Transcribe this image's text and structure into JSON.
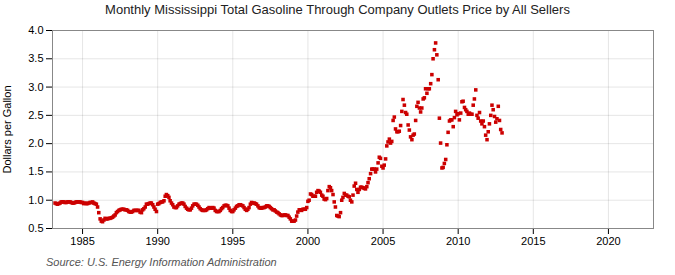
{
  "chart_data": {
    "type": "scatter",
    "title": "Monthly Mississippi Total Gasoline Through Company Outlets Price by All Sellers",
    "y_label": "Dollars per Gallon",
    "annotations": [
      "Source: U.S. Energy Information Administration"
    ],
    "color": "#cc0000",
    "marker": "square",
    "grid": true,
    "xlim": [
      1983,
      2023
    ],
    "ylim": [
      0.5,
      4.0
    ],
    "xticks": [
      1985,
      1990,
      1995,
      2000,
      2005,
      2010,
      2015,
      2020
    ],
    "yticks": [
      0.5,
      {
        "value": 1.0,
        "label": "1.0"
      },
      1.5,
      {
        "value": 2.0,
        "label": "2.0"
      },
      2.5,
      {
        "value": 3.0,
        "label": "3.0"
      },
      3.5,
      {
        "value": 4.0,
        "label": "4.0"
      }
    ],
    "x": [
      1983.17,
      1983.25,
      1983.33,
      1983.42,
      1983.5,
      1983.58,
      1983.67,
      1983.75,
      1983.83,
      1983.92,
      1984.0,
      1984.08,
      1984.17,
      1984.25,
      1984.33,
      1984.42,
      1984.5,
      1984.58,
      1984.67,
      1984.75,
      1984.83,
      1984.92,
      1985.0,
      1985.08,
      1985.17,
      1985.25,
      1985.33,
      1985.42,
      1985.5,
      1985.58,
      1985.67,
      1985.75,
      1985.83,
      1985.92,
      1986.0,
      1986.08,
      1986.17,
      1986.25,
      1986.33,
      1986.42,
      1986.5,
      1986.58,
      1986.67,
      1986.75,
      1986.83,
      1986.92,
      1987.0,
      1987.08,
      1987.17,
      1987.25,
      1987.33,
      1987.42,
      1987.5,
      1987.58,
      1987.67,
      1987.75,
      1987.83,
      1987.92,
      1988.0,
      1988.08,
      1988.17,
      1988.25,
      1988.33,
      1988.42,
      1988.5,
      1988.58,
      1988.67,
      1988.75,
      1988.83,
      1988.92,
      1989.0,
      1989.08,
      1989.17,
      1989.25,
      1989.33,
      1989.42,
      1989.5,
      1989.58,
      1989.67,
      1989.75,
      1989.83,
      1989.92,
      1990.0,
      1990.08,
      1990.17,
      1990.25,
      1990.33,
      1990.42,
      1990.5,
      1990.58,
      1990.67,
      1990.75,
      1990.83,
      1990.92,
      1991.0,
      1991.08,
      1991.17,
      1991.25,
      1991.33,
      1991.42,
      1991.5,
      1991.58,
      1991.67,
      1991.75,
      1991.83,
      1991.92,
      1992.0,
      1992.08,
      1992.17,
      1992.25,
      1992.33,
      1992.42,
      1992.5,
      1992.58,
      1992.67,
      1992.75,
      1992.83,
      1992.92,
      1993.0,
      1993.08,
      1993.17,
      1993.25,
      1993.33,
      1993.42,
      1993.5,
      1993.58,
      1993.67,
      1993.75,
      1993.83,
      1993.92,
      1994.0,
      1994.08,
      1994.17,
      1994.25,
      1994.33,
      1994.42,
      1994.5,
      1994.58,
      1994.67,
      1994.75,
      1994.83,
      1994.92,
      1995.0,
      1995.08,
      1995.17,
      1995.25,
      1995.33,
      1995.42,
      1995.5,
      1995.58,
      1995.67,
      1995.75,
      1995.83,
      1995.92,
      1996.0,
      1996.08,
      1996.17,
      1996.25,
      1996.33,
      1996.42,
      1996.5,
      1996.58,
      1996.67,
      1996.75,
      1996.83,
      1996.92,
      1997.0,
      1997.08,
      1997.17,
      1997.25,
      1997.33,
      1997.42,
      1997.5,
      1997.58,
      1997.67,
      1997.75,
      1997.83,
      1997.92,
      1998.0,
      1998.08,
      1998.17,
      1998.25,
      1998.33,
      1998.42,
      1998.5,
      1998.58,
      1998.67,
      1998.75,
      1998.83,
      1998.92,
      1999.0,
      1999.08,
      1999.17,
      1999.25,
      1999.33,
      1999.42,
      1999.5,
      1999.58,
      1999.67,
      1999.75,
      1999.83,
      1999.92,
      2000.0,
      2000.08,
      2000.17,
      2000.25,
      2000.33,
      2000.42,
      2000.5,
      2000.58,
      2000.67,
      2000.75,
      2000.83,
      2000.92,
      2001.0,
      2001.08,
      2001.17,
      2001.25,
      2001.33,
      2001.42,
      2001.5,
      2001.58,
      2001.67,
      2001.75,
      2001.83,
      2001.92,
      2002.0,
      2002.08,
      2002.17,
      2002.25,
      2002.33,
      2002.42,
      2002.5,
      2002.58,
      2002.67,
      2002.75,
      2002.83,
      2002.92,
      2003.0,
      2003.08,
      2003.17,
      2003.25,
      2003.33,
      2003.42,
      2003.5,
      2003.58,
      2003.67,
      2003.75,
      2003.83,
      2003.92,
      2004.0,
      2004.08,
      2004.17,
      2004.25,
      2004.33,
      2004.42,
      2004.5,
      2004.58,
      2004.67,
      2004.75,
      2004.83,
      2004.92,
      2005.0,
      2005.08,
      2005.17,
      2005.25,
      2005.33,
      2005.42,
      2005.5,
      2005.58,
      2005.67,
      2005.75,
      2005.83,
      2005.92,
      2006.0,
      2006.08,
      2006.17,
      2006.25,
      2006.33,
      2006.42,
      2006.5,
      2006.58,
      2006.67,
      2006.75,
      2006.83,
      2006.92,
      2007.0,
      2007.08,
      2007.17,
      2007.25,
      2007.33,
      2007.42,
      2007.5,
      2007.58,
      2007.67,
      2007.75,
      2007.83,
      2007.92,
      2008.0,
      2008.08,
      2008.17,
      2008.25,
      2008.33,
      2008.42,
      2008.5,
      2008.58,
      2008.67,
      2008.75,
      2008.83,
      2008.92,
      2009.0,
      2009.08,
      2009.17,
      2009.25,
      2009.33,
      2009.42,
      2009.5,
      2009.58,
      2009.67,
      2009.75,
      2009.83,
      2009.92,
      2010.0,
      2010.08,
      2010.17,
      2010.25,
      2010.33,
      2010.42,
      2010.5,
      2010.58,
      2010.67,
      2010.75,
      2010.83,
      2010.92,
      2011.0,
      2011.08,
      2011.17,
      2011.25,
      2011.33,
      2011.42,
      2011.5,
      2011.58,
      2011.67,
      2011.75,
      2011.83,
      2011.92,
      2012.0,
      2012.08,
      2012.17,
      2012.25,
      2012.33,
      2012.42,
      2012.5,
      2012.58,
      2012.67,
      2012.75,
      2012.83,
      2012.92
    ],
    "values": [
      0.95,
      0.94,
      0.93,
      0.94,
      0.95,
      0.97,
      0.97,
      0.97,
      0.96,
      0.96,
      0.97,
      0.97,
      0.97,
      0.96,
      0.95,
      0.95,
      0.96,
      0.97,
      0.97,
      0.97,
      0.97,
      0.96,
      0.96,
      0.94,
      0.95,
      0.94,
      0.94,
      0.95,
      0.96,
      0.96,
      0.97,
      0.95,
      0.94,
      0.93,
      0.88,
      0.78,
      0.67,
      0.63,
      0.62,
      0.65,
      0.68,
      0.67,
      0.67,
      0.68,
      0.68,
      0.69,
      0.7,
      0.72,
      0.74,
      0.78,
      0.8,
      0.82,
      0.83,
      0.84,
      0.84,
      0.84,
      0.83,
      0.83,
      0.82,
      0.8,
      0.79,
      0.79,
      0.8,
      0.82,
      0.82,
      0.82,
      0.82,
      0.82,
      0.79,
      0.78,
      0.83,
      0.85,
      0.88,
      0.93,
      0.93,
      0.94,
      0.95,
      0.95,
      0.92,
      0.88,
      0.84,
      0.8,
      0.93,
      0.94,
      0.96,
      0.97,
      0.97,
      0.99,
      1.07,
      1.1,
      1.08,
      1.05,
      0.99,
      0.95,
      0.92,
      0.88,
      0.87,
      0.87,
      0.9,
      0.93,
      0.94,
      0.95,
      0.95,
      0.93,
      0.89,
      0.86,
      0.84,
      0.83,
      0.83,
      0.86,
      0.9,
      0.93,
      0.93,
      0.93,
      0.91,
      0.88,
      0.85,
      0.83,
      0.82,
      0.82,
      0.82,
      0.83,
      0.85,
      0.87,
      0.86,
      0.86,
      0.87,
      0.86,
      0.82,
      0.8,
      0.8,
      0.8,
      0.82,
      0.85,
      0.87,
      0.9,
      0.91,
      0.91,
      0.9,
      0.86,
      0.82,
      0.8,
      0.8,
      0.83,
      0.86,
      0.89,
      0.9,
      0.92,
      0.92,
      0.91,
      0.9,
      0.87,
      0.84,
      0.82,
      0.84,
      0.87,
      0.93,
      0.96,
      0.95,
      0.95,
      0.94,
      0.93,
      0.9,
      0.87,
      0.86,
      0.86,
      0.87,
      0.87,
      0.88,
      0.9,
      0.9,
      0.89,
      0.87,
      0.85,
      0.83,
      0.83,
      0.81,
      0.79,
      0.78,
      0.76,
      0.74,
      0.73,
      0.73,
      0.74,
      0.74,
      0.73,
      0.73,
      0.7,
      0.67,
      0.63,
      0.63,
      0.63,
      0.65,
      0.72,
      0.79,
      0.83,
      0.83,
      0.82,
      0.84,
      0.84,
      0.84,
      0.87,
      0.98,
      1.0,
      1.11,
      1.1,
      1.07,
      1.07,
      1.07,
      1.14,
      1.17,
      1.16,
      1.14,
      1.09,
      1.07,
      1.02,
      1.01,
      1.03,
      1.17,
      1.24,
      1.22,
      1.17,
      1.1,
      0.97,
      0.88,
      0.73,
      0.72,
      0.71,
      0.78,
      1.0,
      1.05,
      1.12,
      1.09,
      1.09,
      1.07,
      1.06,
      1.0,
      0.97,
      1.09,
      1.25,
      1.3,
      1.19,
      1.14,
      1.19,
      1.23,
      1.23,
      1.22,
      1.21,
      1.2,
      1.24,
      1.31,
      1.38,
      1.47,
      1.55,
      1.55,
      1.55,
      1.5,
      1.55,
      1.66,
      1.76,
      1.74,
      1.6,
      1.57,
      1.62,
      1.73,
      1.96,
      2.03,
      2.08,
      2.01,
      2.04,
      2.41,
      2.47,
      2.26,
      2.21,
      2.21,
      2.22,
      2.32,
      2.57,
      2.78,
      2.68,
      2.55,
      2.52,
      2.33,
      2.24,
      2.12,
      2.07,
      2.15,
      2.17,
      2.41,
      2.66,
      2.73,
      2.63,
      2.56,
      2.63,
      2.79,
      2.81,
      2.97,
      2.89,
      2.97,
      2.97,
      3.06,
      3.22,
      3.5,
      3.66,
      3.78,
      3.57,
      3.13,
      2.45,
      2.01,
      1.57,
      1.58,
      1.65,
      1.72,
      1.98,
      2.2,
      2.4,
      2.42,
      2.42,
      2.3,
      2.46,
      2.57,
      2.51,
      2.53,
      2.42,
      2.54,
      2.74,
      2.75,
      2.64,
      2.6,
      2.57,
      2.52,
      2.54,
      2.52,
      2.52,
      2.68,
      2.79,
      2.95,
      2.5,
      2.45,
      2.55,
      2.4,
      2.35,
      2.4,
      2.3,
      2.15,
      2.07,
      2.21,
      2.35,
      2.5,
      2.68,
      2.6,
      2.48,
      2.38,
      2.44,
      2.66,
      2.41,
      2.25,
      2.19
    ]
  }
}
